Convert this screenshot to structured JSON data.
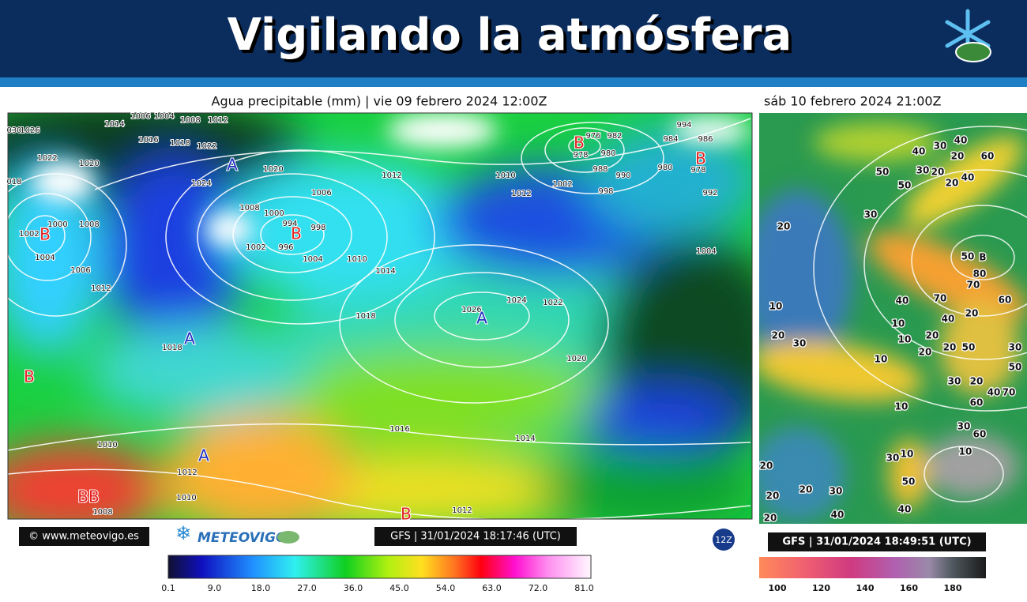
{
  "header": {
    "title": "Vigilando la atmósfera"
  },
  "left_map": {
    "title": "Agua precipitable (mm) | vie 09 febrero 2024 12:00Z",
    "isobar_labels": [
      "1026",
      "1014",
      "1006",
      "1004",
      "1008",
      "1012",
      "1016",
      "1018",
      "1022",
      "1024",
      "1020",
      "1022",
      "1020",
      "1012",
      "1008",
      "1006",
      "1000",
      "994",
      "998",
      "996",
      "1002",
      "1004",
      "1010",
      "1014",
      "1018",
      "1026",
      "1024",
      "1022",
      "1020",
      "1016",
      "1014",
      "1010",
      "1012",
      "1010",
      "1008",
      "1012",
      "1018",
      "1012",
      "1006",
      "1004",
      "1002",
      "1000",
      "1008",
      "1004",
      "976",
      "982",
      "984",
      "994",
      "986",
      "978",
      "980",
      "988",
      "990",
      "978",
      "992",
      "1002",
      "998",
      "980",
      "1010",
      "1012",
      "030",
      "018"
    ],
    "pressure_centers": [
      "B",
      "B",
      "A",
      "A",
      "A",
      "B",
      "A",
      "BB",
      "B",
      "B",
      "B"
    ],
    "credit": "© www.meteovigo.es",
    "brand": "METEOVIGO",
    "run_stamp": "GFS | 31/01/2024 18:17:46 (UTC)",
    "run_badge": "12Z",
    "colorbar_labels": [
      "0.1",
      "9.0",
      "18.0",
      "27.0",
      "36.0",
      "45.0",
      "54.0",
      "63.0",
      "72.0",
      "81.0"
    ]
  },
  "right_map": {
    "title": "sáb 10 febrero 2024 21:00Z",
    "labels": [
      "30",
      "40",
      "20",
      "60",
      "50",
      "30",
      "20",
      "40",
      "50",
      "20",
      "40",
      "30",
      "20",
      "50",
      "B",
      "80",
      "70",
      "40",
      "70",
      "60",
      "10",
      "20",
      "40",
      "10",
      "20",
      "20",
      "30",
      "10",
      "50",
      "30",
      "20",
      "20",
      "10",
      "50",
      "30",
      "20",
      "40",
      "70",
      "60",
      "10",
      "30",
      "60",
      "10",
      "10",
      "20",
      "30",
      "50",
      "20",
      "20",
      "30",
      "40",
      "40",
      "20"
    ],
    "run_stamp": "GFS | 31/01/2024 18:49:51 (UTC)",
    "colorbar_labels": [
      "100",
      "120",
      "140",
      "160",
      "180"
    ]
  }
}
